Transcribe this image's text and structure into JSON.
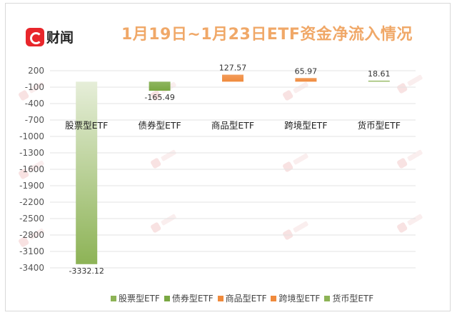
{
  "logo": {
    "text": "财闻"
  },
  "chart_data": {
    "type": "bar",
    "title": "1月19日~1月23日ETF资金净流入情况",
    "categories": [
      "股票型ETF",
      "债券型ETF",
      "商品型ETF",
      "跨境型ETF",
      "货币型ETF"
    ],
    "values": [
      -3332.12,
      -165.49,
      127.57,
      65.97,
      18.61
    ],
    "value_labels": [
      "-3332.12",
      "-165.49",
      "127.57",
      "65.97",
      "18.61"
    ],
    "colors": [
      "#8db356",
      "#7aa843",
      "#f08a3c",
      "#f08a3c",
      "#8db356"
    ],
    "yticks": [
      200,
      -100,
      -400,
      -700,
      -1000,
      -1300,
      -1600,
      -1900,
      -2200,
      -2500,
      -2800,
      -3100,
      -3400
    ],
    "ylim": [
      -3400,
      200
    ],
    "grid": true,
    "legend": "bottom",
    "xlabel": "",
    "ylabel": ""
  }
}
